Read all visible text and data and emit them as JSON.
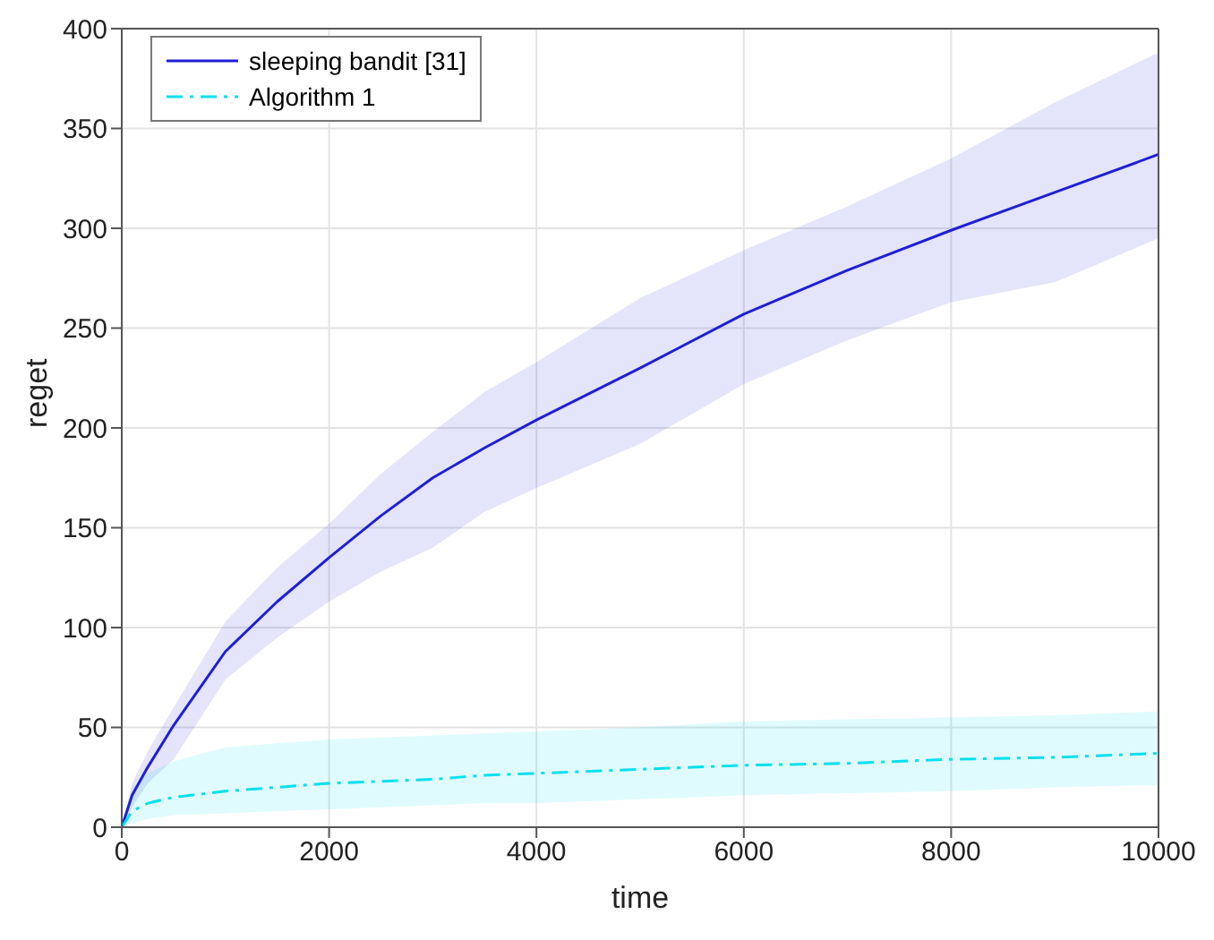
{
  "chart_data": {
    "type": "line",
    "xlabel": "time",
    "ylabel": "reget",
    "x": [
      0,
      100,
      250,
      500,
      1000,
      1500,
      2000,
      2500,
      3000,
      3500,
      4000,
      5000,
      6000,
      7000,
      8000,
      9000,
      10000
    ],
    "series": [
      {
        "name": "sleeping bandit [31]",
        "color": "#1f1fd6",
        "line_style": "solid",
        "values": [
          0,
          16,
          30,
          51,
          88,
          113,
          135,
          156,
          175,
          190,
          204,
          230,
          257,
          279,
          299,
          318,
          337
        ],
        "lower": [
          0,
          10,
          22,
          34,
          74,
          95,
          113,
          128,
          140,
          158,
          170,
          192,
          222,
          244,
          263,
          273,
          295
        ],
        "upper": [
          0,
          22,
          38,
          60,
          103,
          130,
          152,
          177,
          198,
          218,
          233,
          265,
          289,
          311,
          335,
          363,
          388
        ]
      },
      {
        "name": "Algorithm 1",
        "color": "#00e0ee",
        "line_style": "dashed",
        "values": [
          0,
          8,
          12,
          15,
          18,
          20,
          22,
          23,
          24,
          26,
          27,
          29,
          31,
          32,
          34,
          35,
          37
        ],
        "lower": [
          0,
          2,
          4,
          6,
          7,
          8,
          9,
          10,
          11,
          12,
          12,
          14,
          16,
          17,
          18,
          20,
          21
        ],
        "upper": [
          0,
          20,
          27,
          33,
          40,
          42,
          44,
          45,
          46,
          47,
          48,
          50,
          53,
          54,
          55,
          56,
          58
        ]
      }
    ],
    "xlim": [
      0,
      10000
    ],
    "xticks": [
      0,
      2000,
      4000,
      6000,
      8000,
      10000
    ],
    "ylim": [
      0,
      400
    ],
    "yticks": [
      0,
      50,
      100,
      150,
      200,
      250,
      300,
      350,
      400
    ],
    "grid": true,
    "legend": "top left",
    "marker": "none"
  }
}
